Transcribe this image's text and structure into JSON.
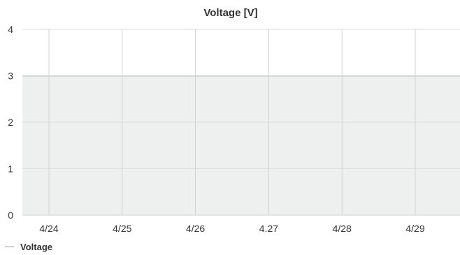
{
  "chart_data": {
    "type": "area",
    "title": "Voltage [V]",
    "xlabel": "",
    "ylabel": "",
    "x_tick_labels": [
      "4/24",
      "4/25",
      "4/26",
      "4.27",
      "4/28",
      "4/29"
    ],
    "y_ticks": [
      0,
      1,
      2,
      3,
      4
    ],
    "ylim": [
      0,
      4
    ],
    "grid": true,
    "legend_position": "bottom-left",
    "series": [
      {
        "name": "Voltage",
        "color": "#a0a0a0",
        "fill_color": "#eef0ef",
        "values": [
          3,
          3,
          3,
          3,
          3,
          3
        ]
      }
    ]
  }
}
